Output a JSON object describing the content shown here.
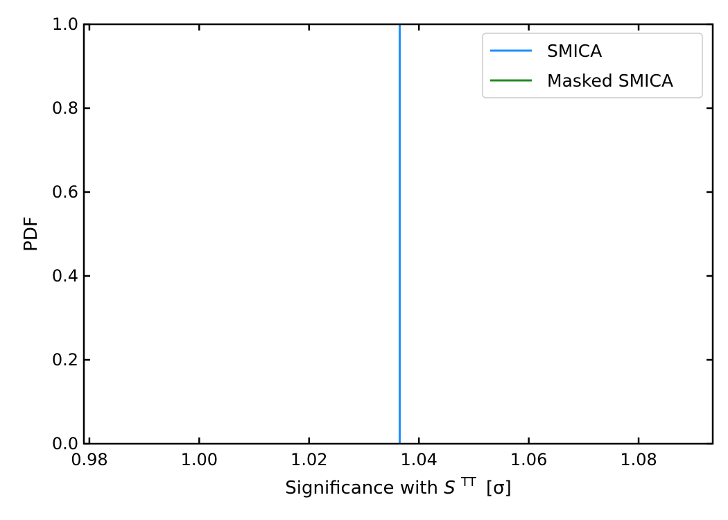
{
  "chart_data": {
    "type": "line",
    "xlabel": {
      "prefix": "Significance with ",
      "symbol": "S",
      "superscript": "TT",
      "unit": "[σ]"
    },
    "ylabel": "PDF",
    "xlim": [
      0.979,
      1.0935
    ],
    "ylim": [
      0.0,
      1.0
    ],
    "xticks": [
      0.98,
      1.0,
      1.02,
      1.04,
      1.06,
      1.08
    ],
    "xtick_labels": [
      "0.98",
      "1.00",
      "1.02",
      "1.04",
      "1.06",
      "1.08"
    ],
    "yticks": [
      0.0,
      0.2,
      0.4,
      0.6,
      0.8,
      1.0
    ],
    "ytick_labels": [
      "0.0",
      "0.2",
      "0.4",
      "0.6",
      "0.8",
      "1.0"
    ],
    "grid": false,
    "legend_position": "top-right",
    "series": [
      {
        "name": "SMICA",
        "color": "#1e90ff",
        "kind": "vertical-line",
        "x": 1.0365
      },
      {
        "name": "Masked SMICA",
        "color": "#228b22",
        "kind": "vertical-line",
        "x": null
      }
    ]
  }
}
